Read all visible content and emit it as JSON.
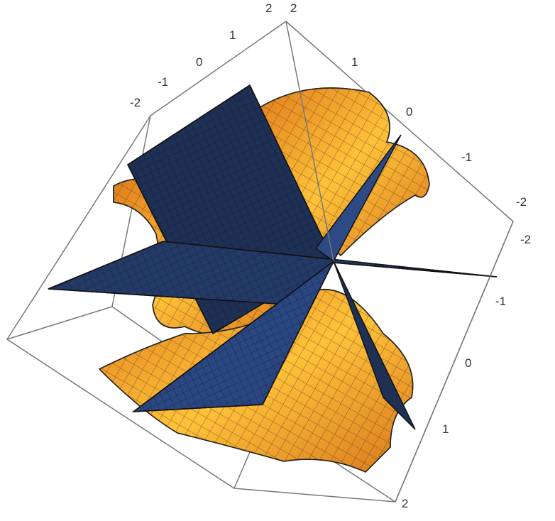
{
  "plot": {
    "type": "3d-surface",
    "colors": {
      "surface": "#f39a2c",
      "surface_highlight": "#ffd84a",
      "plane": "#1f3055",
      "box": "#777777"
    },
    "axis_a": {
      "ticks": [
        "-2",
        "-1",
        "0",
        "1",
        "2"
      ]
    },
    "axis_b": {
      "ticks": [
        "2",
        "1",
        "0",
        "-1",
        "-2"
      ]
    },
    "axis_c": {
      "ticks": [
        "-2",
        "-1",
        "0",
        "1",
        "2"
      ]
    }
  }
}
